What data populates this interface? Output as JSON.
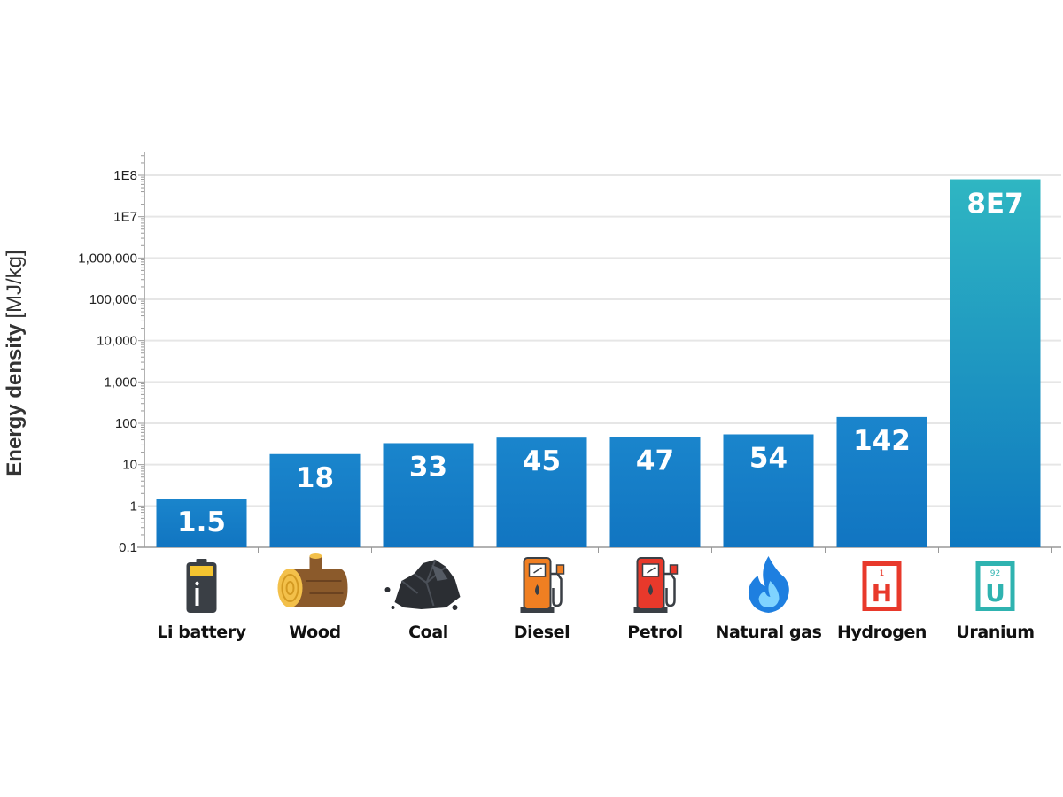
{
  "chart_data": {
    "type": "bar",
    "ylabel": "Energy density",
    "ylabel_unit": "[MJ/kg]",
    "yscale": "log",
    "ylim": [
      0.1,
      100000000
    ],
    "grid": true,
    "yticks": [
      {
        "value": 0.1,
        "label": "0.1"
      },
      {
        "value": 1,
        "label": "1"
      },
      {
        "value": 10,
        "label": "10"
      },
      {
        "value": 100,
        "label": "100"
      },
      {
        "value": 1000,
        "label": "1,000"
      },
      {
        "value": 10000,
        "label": "10,000"
      },
      {
        "value": 100000,
        "label": "100,000"
      },
      {
        "value": 1000000,
        "label": "1,000,000"
      },
      {
        "value": 10000000,
        "label": "1E7"
      },
      {
        "value": 100000000,
        "label": "1E8"
      }
    ],
    "categories": [
      "Li battery",
      "Wood",
      "Coal",
      "Diesel",
      "Petrol",
      "Natural gas",
      "Hydrogen",
      "Uranium"
    ],
    "values": [
      1.5,
      18,
      33,
      45,
      47,
      54,
      142,
      80000000
    ],
    "value_labels": [
      "1.5",
      "18",
      "33",
      "45",
      "47",
      "54",
      "142",
      "8E7"
    ],
    "icons": [
      "battery-icon",
      "log-icon",
      "coal-icon",
      "diesel-pump-icon",
      "petrol-pump-icon",
      "flame-icon",
      "hydrogen-element-icon",
      "uranium-element-icon"
    ],
    "element_tiles": [
      {
        "number": "1",
        "symbol": "H"
      },
      {
        "number": "92",
        "symbol": "U"
      }
    ],
    "colors": {
      "bar": "#1175c1",
      "bar_top": "#1a85cc",
      "uranium_top": "#2fb6c2",
      "uranium_bottom": "#0e78c0",
      "diesel": "#f07f22",
      "petrol": "#e8392b",
      "hydrogen": "#e8392b",
      "uranium": "#2fb3b0",
      "flame": "#1e7fe0"
    }
  }
}
